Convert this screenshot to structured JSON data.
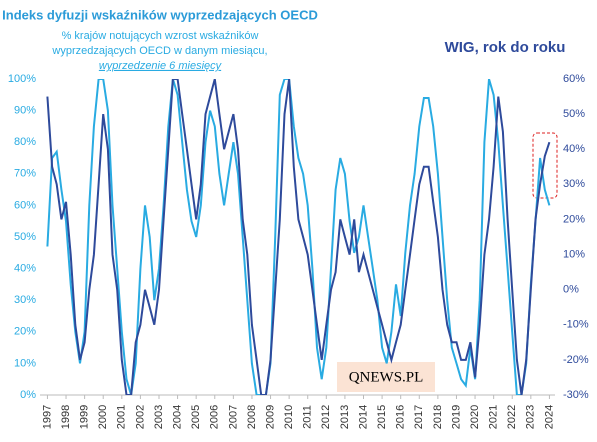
{
  "chart_data": {
    "type": "line",
    "title": "Indeks dyfuzji wskaźników wyprzedzających OECD",
    "subtitle": [
      "% krajów notujących wzrost wskaźników",
      "wyprzedzających OECD w danym miesiącu,",
      "wyprzedzenie  6 miesięcy"
    ],
    "y2_title": "WIG, rok do roku",
    "logo": "QNEWS.PL",
    "x": [
      1997,
      1997.25,
      1997.5,
      1997.75,
      1998,
      1998.25,
      1998.5,
      1998.75,
      1999,
      1999.25,
      1999.5,
      1999.75,
      2000,
      2000.25,
      2000.5,
      2000.75,
      2001,
      2001.25,
      2001.5,
      2001.75,
      2002,
      2002.25,
      2002.5,
      2002.75,
      2003,
      2003.25,
      2003.5,
      2003.75,
      2004,
      2004.25,
      2004.5,
      2004.75,
      2005,
      2005.25,
      2005.5,
      2005.75,
      2006,
      2006.25,
      2006.5,
      2006.75,
      2007,
      2007.25,
      2007.5,
      2007.75,
      2008,
      2008.25,
      2008.5,
      2008.75,
      2009,
      2009.25,
      2009.5,
      2009.75,
      2010,
      2010.25,
      2010.5,
      2010.75,
      2011,
      2011.25,
      2011.5,
      2011.75,
      2012,
      2012.25,
      2012.5,
      2012.75,
      2013,
      2013.25,
      2013.5,
      2013.75,
      2014,
      2014.25,
      2014.5,
      2014.75,
      2015,
      2015.25,
      2015.5,
      2015.75,
      2016,
      2016.25,
      2016.5,
      2016.75,
      2017,
      2017.25,
      2017.5,
      2017.75,
      2018,
      2018.25,
      2018.5,
      2018.75,
      2019,
      2019.25,
      2019.5,
      2019.75,
      2020,
      2020.25,
      2020.5,
      2020.75,
      2021,
      2021.25,
      2021.5,
      2021.75,
      2022,
      2022.25,
      2022.5,
      2022.75,
      2023,
      2023.25,
      2023.5,
      2023.75,
      2024
    ],
    "series": [
      {
        "name": "Indeks dyfuzji",
        "color": "#29abe2",
        "axis": "y",
        "values": [
          47,
          75,
          77,
          65,
          55,
          35,
          20,
          10,
          20,
          60,
          85,
          100,
          100,
          90,
          60,
          40,
          20,
          5,
          0,
          10,
          40,
          60,
          50,
          30,
          40,
          60,
          85,
          100,
          95,
          80,
          65,
          55,
          50,
          60,
          80,
          90,
          85,
          70,
          60,
          70,
          80,
          70,
          50,
          30,
          10,
          0,
          0,
          0,
          10,
          50,
          95,
          100,
          100,
          85,
          75,
          70,
          60,
          40,
          15,
          5,
          15,
          40,
          65,
          75,
          70,
          55,
          45,
          50,
          60,
          50,
          40,
          30,
          15,
          10,
          20,
          35,
          25,
          45,
          60,
          70,
          85,
          94,
          94,
          85,
          70,
          50,
          30,
          15,
          10,
          5,
          3,
          15,
          5,
          30,
          80,
          100,
          95,
          80,
          60,
          40,
          20,
          0,
          0,
          10,
          35,
          55,
          75,
          65,
          60
        ]
      },
      {
        "name": "WIG",
        "color": "#2e4a9b",
        "axis": "y2",
        "values": [
          55,
          35,
          30,
          20,
          25,
          10,
          -10,
          -20,
          -15,
          0,
          10,
          30,
          50,
          40,
          10,
          0,
          -20,
          -30,
          -30,
          -15,
          -10,
          0,
          -5,
          -10,
          0,
          20,
          40,
          60,
          60,
          50,
          40,
          30,
          20,
          30,
          50,
          55,
          60,
          50,
          40,
          45,
          50,
          40,
          20,
          10,
          -10,
          -20,
          -30,
          -30,
          -20,
          0,
          20,
          50,
          60,
          35,
          20,
          15,
          10,
          0,
          -10,
          -20,
          -10,
          0,
          5,
          20,
          15,
          10,
          20,
          5,
          10,
          5,
          0,
          -5,
          -10,
          -15,
          -20,
          -15,
          -10,
          0,
          10,
          20,
          30,
          35,
          35,
          25,
          15,
          0,
          -10,
          -15,
          -15,
          -20,
          -20,
          -15,
          -25,
          -10,
          10,
          20,
          35,
          55,
          45,
          20,
          0,
          -20,
          -30,
          -20,
          0,
          20,
          30,
          38,
          42
        ]
      }
    ],
    "xlim": [
      1996.6,
      2024.3
    ],
    "xticks": [
      1997,
      1998,
      1999,
      2000,
      2001,
      2002,
      2003,
      2004,
      2005,
      2006,
      2007,
      2008,
      2009,
      2010,
      2011,
      2012,
      2013,
      2014,
      2015,
      2016,
      2017,
      2018,
      2019,
      2020,
      2021,
      2022,
      2023,
      2024
    ],
    "ylim": [
      0,
      100
    ],
    "yticks": [
      {
        "value": 0,
        "label": "0%"
      },
      {
        "value": 10,
        "label": "10%"
      },
      {
        "value": 20,
        "label": "20%"
      },
      {
        "value": 30,
        "label": "30%"
      },
      {
        "value": 40,
        "label": "40%"
      },
      {
        "value": 50,
        "label": "50%"
      },
      {
        "value": 60,
        "label": "60%"
      },
      {
        "value": 70,
        "label": "70%"
      },
      {
        "value": 80,
        "label": "80%"
      },
      {
        "value": 90,
        "label": "90%"
      },
      {
        "value": 100,
        "label": "100%"
      }
    ],
    "y2lim": [
      -30,
      60
    ],
    "y2ticks": [
      {
        "value": -30,
        "label": "-30%"
      },
      {
        "value": -20,
        "label": "-20%"
      },
      {
        "value": -10,
        "label": "-10%"
      },
      {
        "value": 0,
        "label": "0%"
      },
      {
        "value": 10,
        "label": "10%"
      },
      {
        "value": 20,
        "label": "20%"
      },
      {
        "value": 30,
        "label": "30%"
      },
      {
        "value": 40,
        "label": "40%"
      },
      {
        "value": 50,
        "label": "50%"
      },
      {
        "value": 60,
        "label": "60%"
      }
    ]
  }
}
